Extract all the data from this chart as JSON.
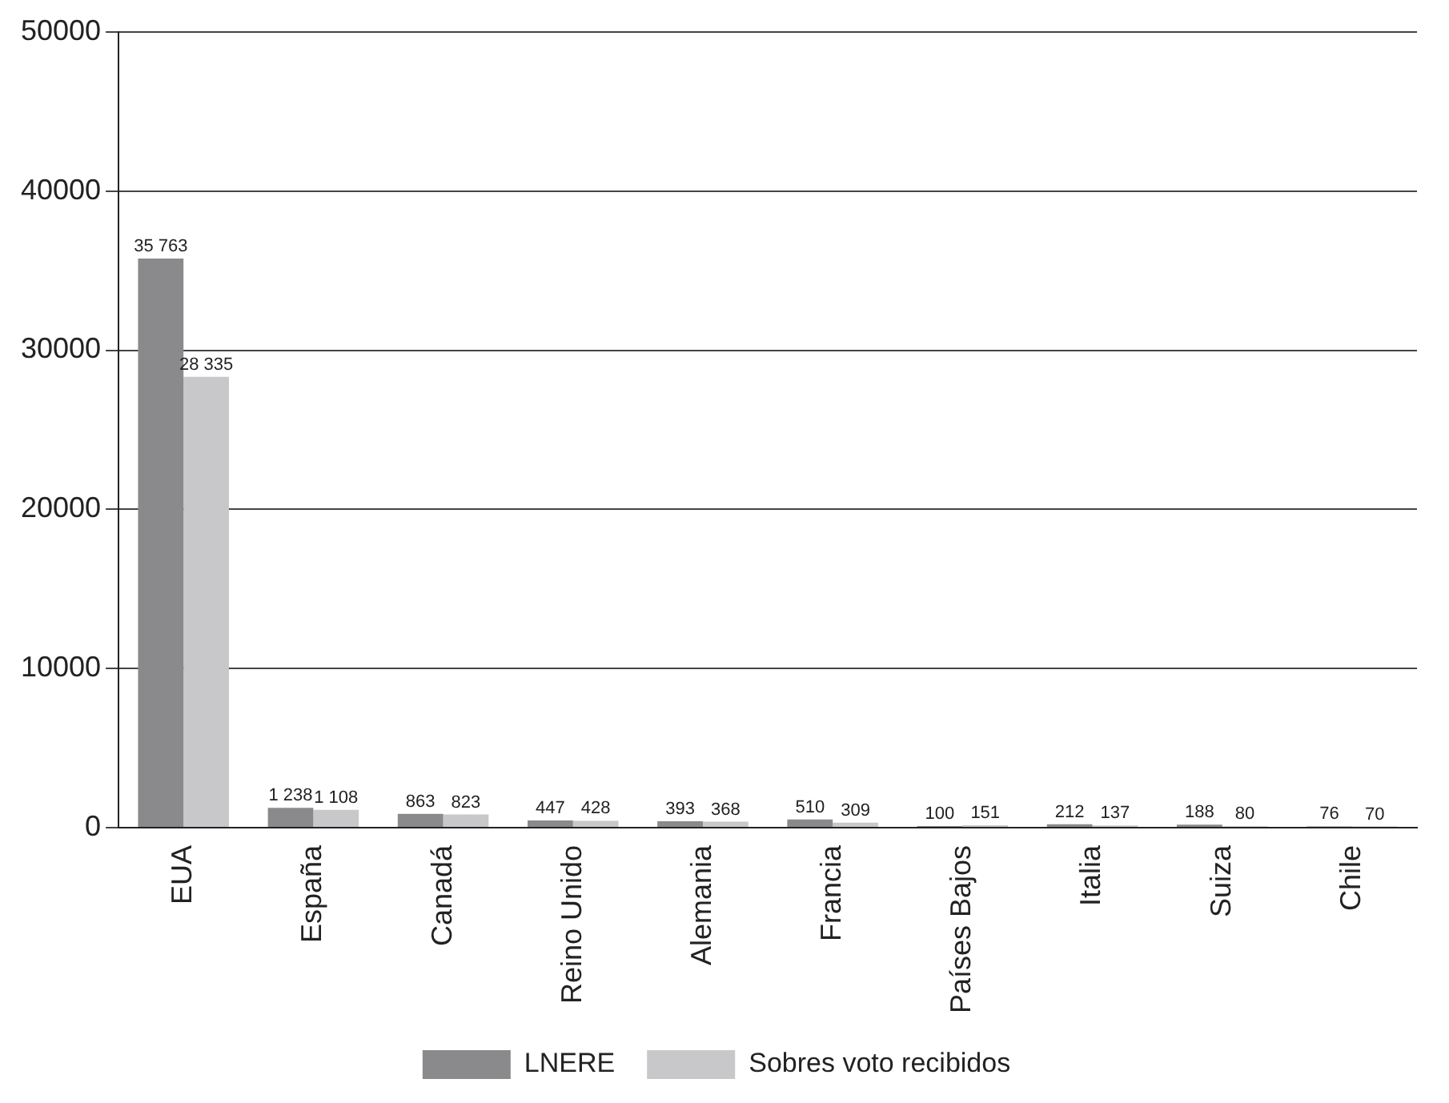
{
  "chart_data": {
    "type": "bar",
    "categories": [
      "EUA",
      "España",
      "Canadá",
      "Reino Unido",
      "Alemania",
      "Francia",
      "Países Bajos",
      "Italia",
      "Suiza",
      "Chile"
    ],
    "series": [
      {
        "name": "LNERE",
        "color": "#8a8a8d",
        "values": [
          35763,
          1238,
          863,
          447,
          393,
          510,
          100,
          212,
          188,
          76
        ],
        "value_labels": [
          "35 763",
          "1 238",
          "863",
          "447",
          "393",
          "510",
          "100",
          "212",
          "188",
          "76"
        ]
      },
      {
        "name": "Sobres voto recibidos",
        "color": "#c8c8ca",
        "values": [
          28335,
          1108,
          823,
          428,
          368,
          309,
          151,
          137,
          80,
          70
        ],
        "value_labels": [
          "28 335",
          "1 108",
          "823",
          "428",
          "368",
          "309",
          "151",
          "137",
          "80",
          "70"
        ]
      }
    ],
    "ylim": [
      0,
      50000
    ],
    "yticks": [
      0,
      10000,
      20000,
      30000,
      40000,
      50000
    ],
    "grid": "y",
    "legend": "bottom"
  }
}
